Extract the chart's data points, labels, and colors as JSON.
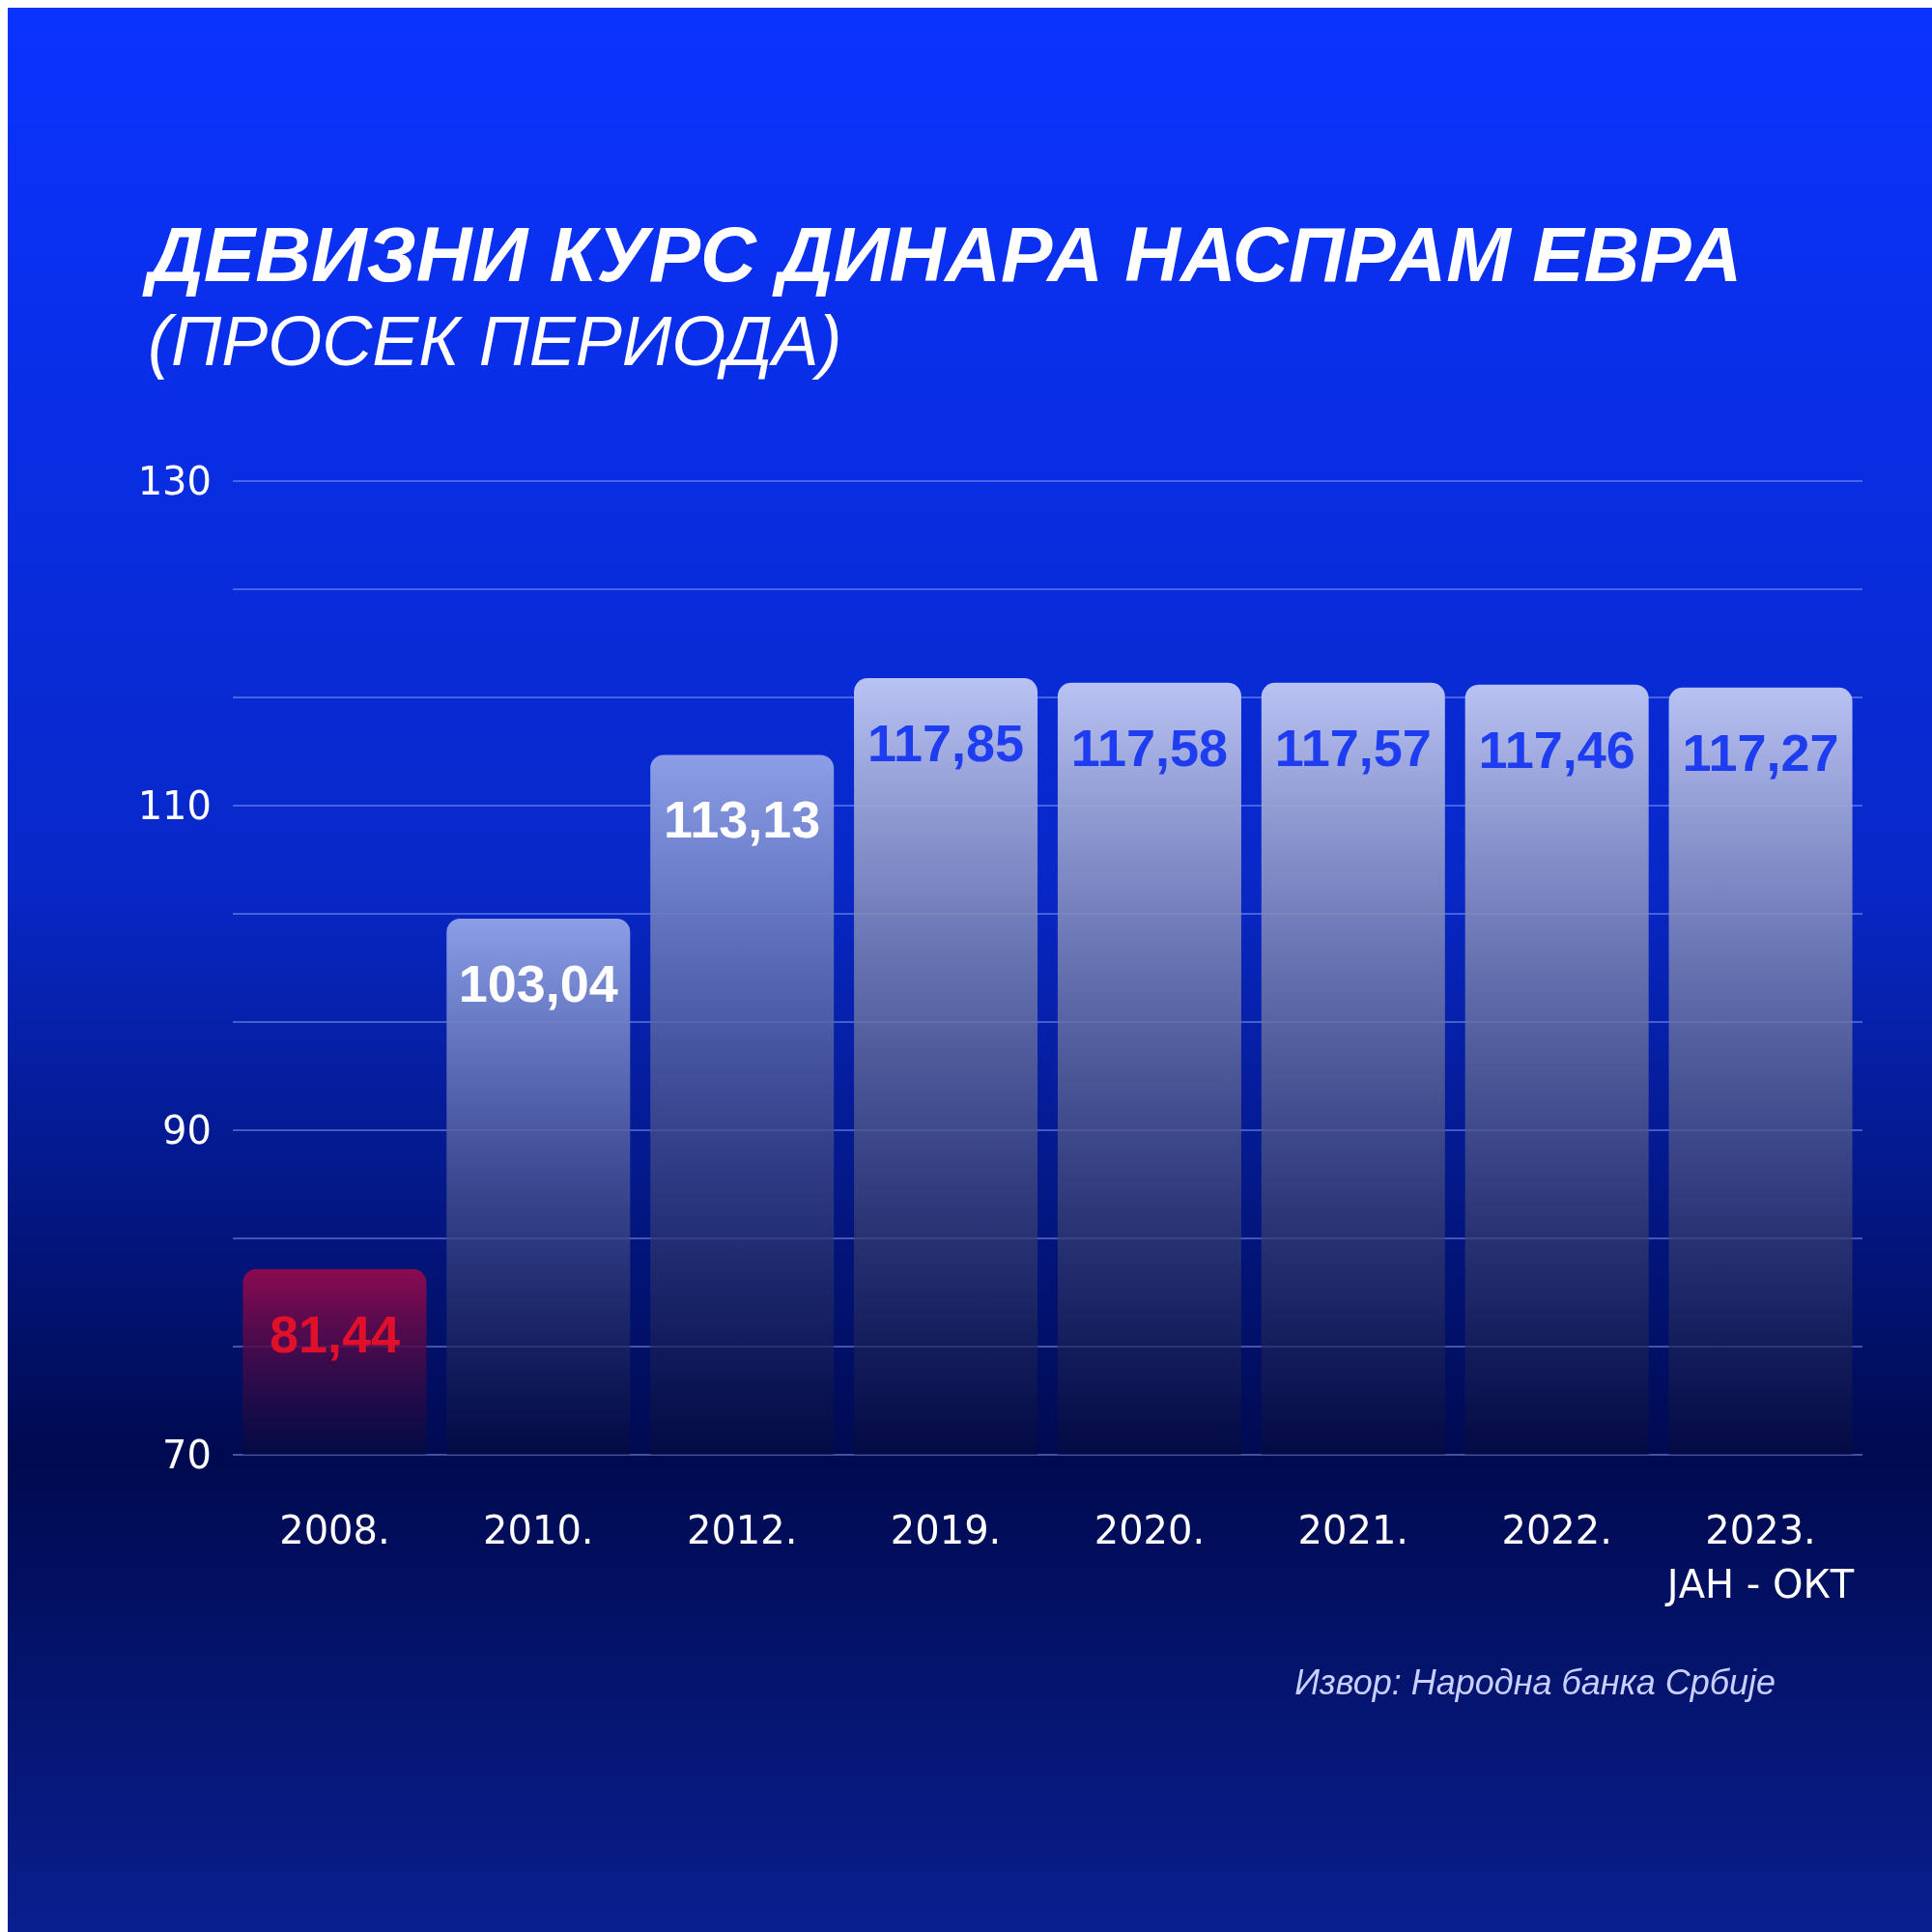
{
  "chart_data": {
    "type": "bar",
    "title": "ДЕВИЗНИ КУРС ДИНАРА НАСПРАМ ЕВРА",
    "subtitle": "(ПРОСЕК ПЕРИОДА)",
    "categories": [
      "2008.",
      "2010.",
      "2012.",
      "2019.",
      "2020.",
      "2021.",
      "2022.",
      "2023.\nЈАН - ОКТ"
    ],
    "values": [
      81.44,
      103.04,
      113.13,
      117.85,
      117.58,
      117.57,
      117.46,
      117.27
    ],
    "value_labels": [
      "81,44",
      "103,04",
      "113,13",
      "117,85",
      "117,58",
      "117,57",
      "117,46",
      "117,27"
    ],
    "colors": [
      "#8c0a50",
      "#8c9ee8",
      "#8c9ee8",
      "#b8c2f2",
      "#b8c2f2",
      "#b8c2f2",
      "#b8c2f2",
      "#b8c2f2"
    ],
    "ylim": [
      70,
      130
    ],
    "yticks": [
      70,
      {
        "value": 76.67,
        "label": null
      },
      {
        "value": 83.33,
        "label": null
      },
      90,
      {
        "value": 96.67,
        "label": null
      },
      {
        "value": 103.33,
        "label": null
      },
      110,
      {
        "value": 116.67,
        "label": null
      },
      {
        "value": 123.33,
        "label": null
      },
      130
    ],
    "grid": "y",
    "annotations": [
      "Извор: Народна банка Србије"
    ]
  }
}
